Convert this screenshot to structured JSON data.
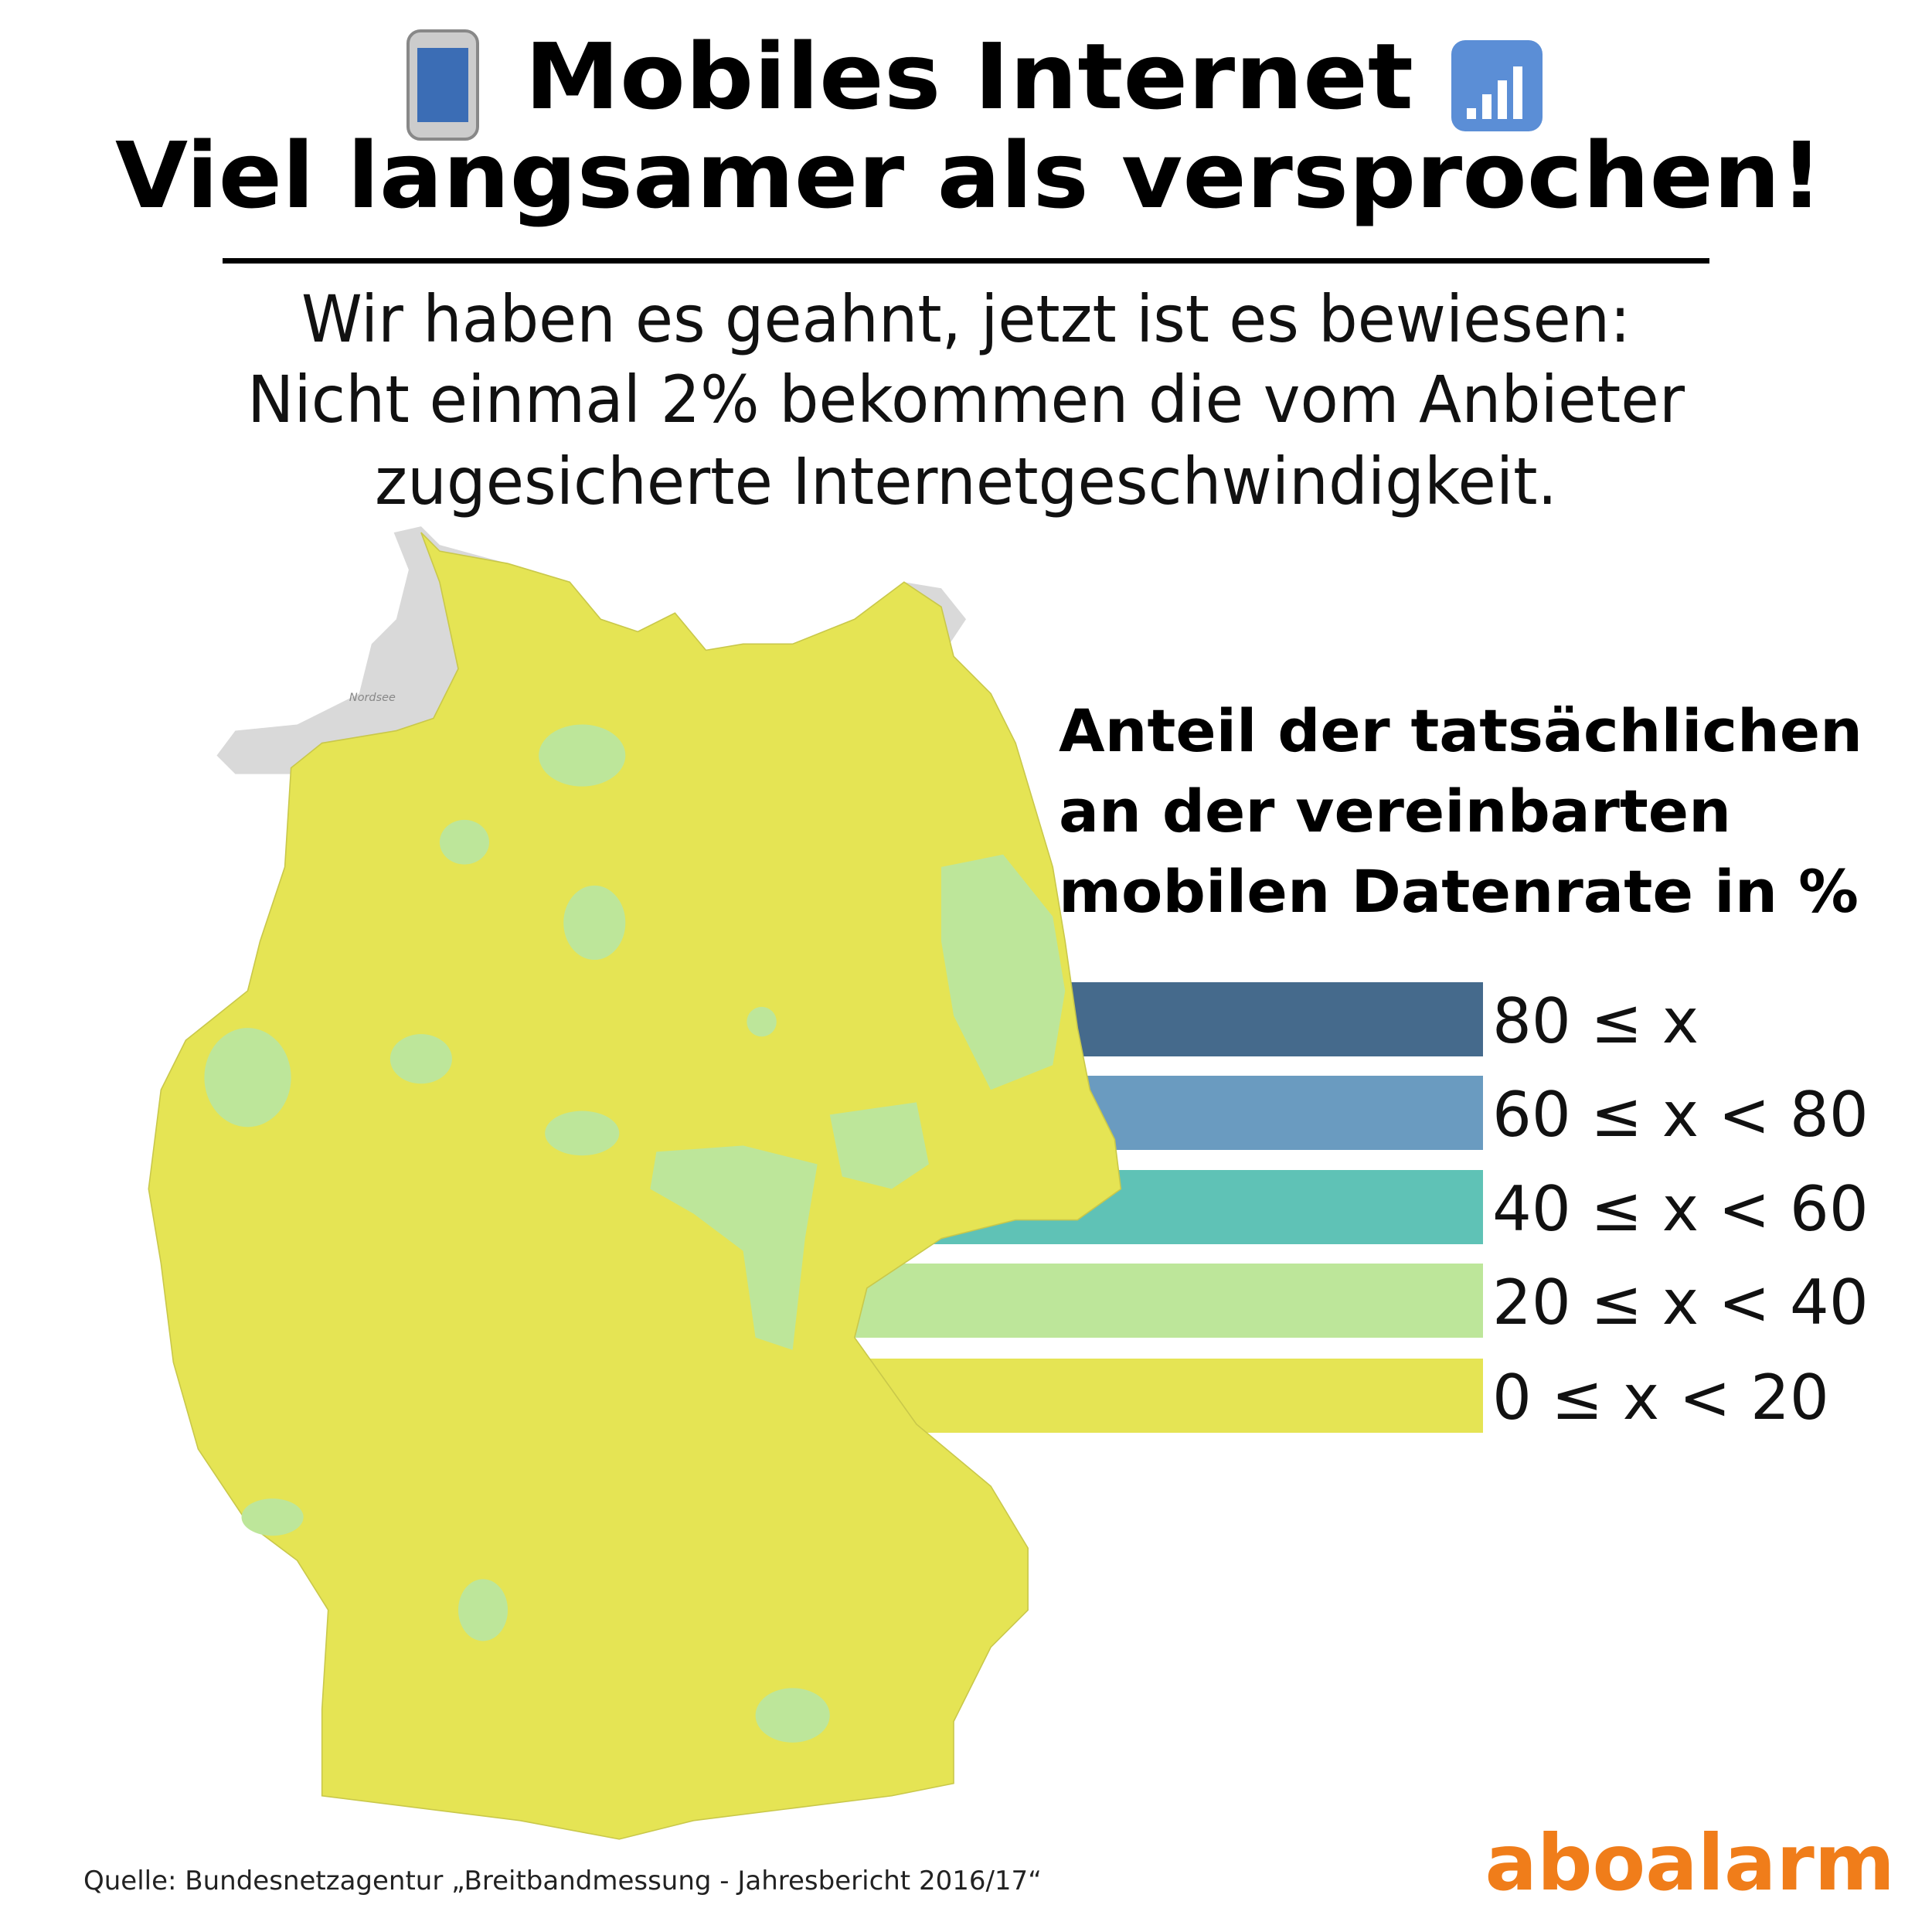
{
  "header": {
    "title_lines": [
      "Mobiles Internet",
      "Viel langsamer als versprochen!"
    ],
    "subtitle_lines": [
      "Wir haben es geahnt, jetzt ist es bewiesen:",
      "Nicht einmal 2% bekommen die vom Anbieter",
      "zugesicherte Internetgeschwindigkeit."
    ]
  },
  "legend": {
    "title_lines": [
      "Anteil der tatsächlichen",
      "an der vereinbarten",
      "mobilen Datenrate in %"
    ],
    "items": [
      {
        "label": "80 ≤ x",
        "color": "#456a8c"
      },
      {
        "label": "60 ≤ x < 80",
        "color": "#6a9bc0"
      },
      {
        "label": "40 ≤ x < 60",
        "color": "#5fc2b6"
      },
      {
        "label": "20 ≤ x < 40",
        "color": "#bde69a"
      },
      {
        "label": "0 ≤ x < 20",
        "color": "#e5e454"
      }
    ]
  },
  "map": {
    "sea_label": "Nordsee"
  },
  "footer": {
    "source": "Quelle: Bundesnetzagentur „Breitbandmessung - Jahresbericht 2016/17“",
    "brand": "aboalarm"
  }
}
